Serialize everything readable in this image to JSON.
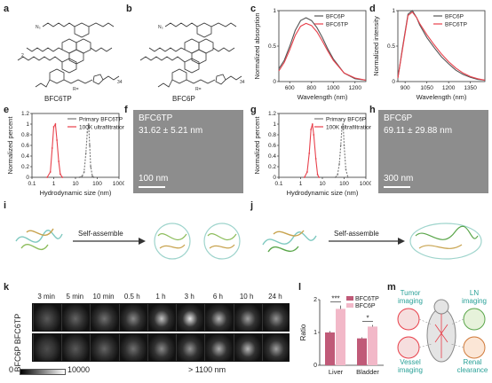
{
  "panels": {
    "a": "a",
    "b": "b",
    "c": "c",
    "d": "d",
    "e": "e",
    "f": "f",
    "g": "g",
    "h": "h",
    "i": "i",
    "j": "j",
    "k": "k",
    "l": "l",
    "m": "m"
  },
  "structures": {
    "a_caption": "BFC6TP",
    "b_caption": "BFC6P",
    "r_group": "R=",
    "repeat_34": "34",
    "repeat_2": "2",
    "n3": "N₃"
  },
  "tem": {
    "f_title": "BFC6TP",
    "f_size": "31.62 ± 5.21 nm",
    "f_scale": "100 nm",
    "h_title": "BFC6P",
    "h_size": "69.11 ± 29.88 nm",
    "h_scale": "300 nm"
  },
  "self_assemble": {
    "i_label": "Self-assemble",
    "j_label": "Self-assemble"
  },
  "imaging": {
    "times": [
      "3 min",
      "5 min",
      "10 min",
      "0.5 h",
      "1 h",
      "3 h",
      "6 h",
      "10 h",
      "24 h"
    ],
    "row1": "BFC6TP",
    "row2": "BFC6P",
    "scale_min": "0",
    "scale_max": "10000",
    "wavelength": "> 1100 nm"
  },
  "schematic": {
    "tumor": "Tumor\nimaging",
    "ln": "LN\nimaging",
    "vessel": "Vessel\nimaging",
    "renal": "Renal\nclearance"
  },
  "colors": {
    "red": "#e8404b",
    "gray": "#555555",
    "bar_dark": "#c05a78",
    "bar_light": "#f2b8c8",
    "teal": "#2aa198"
  },
  "chart_data": [
    {
      "id": "c",
      "type": "line",
      "xlabel": "Wavelength (nm)",
      "ylabel": "Normalized absorption",
      "xlim": [
        500,
        1300
      ],
      "ylim": [
        0,
        1.0
      ],
      "xticks": [
        600,
        800,
        1000,
        1200
      ],
      "yticks": [
        0,
        0.5,
        1.0
      ],
      "legend_position": "top-right",
      "series": [
        {
          "name": "BFC6P",
          "color": "#555555",
          "x": [
            500,
            550,
            600,
            650,
            700,
            750,
            800,
            850,
            900,
            950,
            1000,
            1100,
            1200,
            1300
          ],
          "y": [
            0.18,
            0.3,
            0.5,
            0.72,
            0.86,
            0.9,
            0.86,
            0.76,
            0.62,
            0.46,
            0.32,
            0.12,
            0.04,
            0.02
          ]
        },
        {
          "name": "BFC6TP",
          "color": "#e8404b",
          "x": [
            500,
            550,
            600,
            650,
            700,
            750,
            800,
            850,
            900,
            950,
            1000,
            1100,
            1200,
            1300
          ],
          "y": [
            0.15,
            0.27,
            0.45,
            0.65,
            0.78,
            0.82,
            0.79,
            0.7,
            0.57,
            0.43,
            0.3,
            0.12,
            0.05,
            0.02
          ]
        }
      ]
    },
    {
      "id": "d",
      "type": "line",
      "xlabel": "Wavelength (nm)",
      "ylabel": "Normalized intensity",
      "xlim": [
        850,
        1450
      ],
      "ylim": [
        0,
        1.0
      ],
      "xticks": [
        900,
        1050,
        1200,
        1350
      ],
      "yticks": [
        0,
        0.5,
        1.0
      ],
      "legend_position": "top-right",
      "series": [
        {
          "name": "BFC6P",
          "color": "#555555",
          "x": [
            850,
            880,
            920,
            950,
            980,
            1000,
            1050,
            1100,
            1150,
            1200,
            1250,
            1300,
            1350,
            1400,
            1450
          ],
          "y": [
            0.05,
            0.45,
            0.95,
            1.0,
            0.9,
            0.8,
            0.62,
            0.48,
            0.35,
            0.25,
            0.16,
            0.1,
            0.06,
            0.03,
            0.02
          ]
        },
        {
          "name": "BFC6TP",
          "color": "#e8404b",
          "x": [
            850,
            880,
            920,
            950,
            980,
            1000,
            1050,
            1100,
            1150,
            1200,
            1250,
            1300,
            1350,
            1400,
            1450
          ],
          "y": [
            0.05,
            0.43,
            0.93,
            0.98,
            0.9,
            0.82,
            0.66,
            0.52,
            0.39,
            0.28,
            0.19,
            0.12,
            0.07,
            0.04,
            0.02
          ]
        }
      ]
    },
    {
      "id": "e",
      "type": "line",
      "xscale": "log",
      "xlabel": "Hydrodynamic size (nm)",
      "ylabel": "Normalized percent",
      "xlim": [
        0.1,
        1000
      ],
      "ylim": [
        0,
        1.2
      ],
      "xticks": [
        0.1,
        1,
        10,
        100,
        1000
      ],
      "yticks": [
        0.0,
        0.2,
        0.4,
        0.6,
        0.8,
        1.0,
        1.2
      ],
      "legend_position": "top-right",
      "series": [
        {
          "name": "Primary BFC6TP",
          "color": "#777777",
          "dashed": true,
          "x": [
            15,
            20,
            25,
            30,
            35,
            40,
            45,
            50,
            60,
            70
          ],
          "y": [
            0,
            0.02,
            0.1,
            0.45,
            0.85,
            1.0,
            0.6,
            0.2,
            0.02,
            0
          ]
        },
        {
          "name": "100K ultrafiltration",
          "color": "#e8404b",
          "dashed": false,
          "x": [
            0.5,
            0.7,
            0.85,
            1.0,
            1.2,
            1.4,
            1.7,
            2.0,
            2.5
          ],
          "y": [
            0,
            0.1,
            0.55,
            0.95,
            1.0,
            0.7,
            0.3,
            0.06,
            0
          ]
        }
      ]
    },
    {
      "id": "g",
      "type": "line",
      "xscale": "log",
      "xlabel": "Hydrodynamic size (nm)",
      "ylabel": "Normalized percent",
      "xlim": [
        0.1,
        1000
      ],
      "ylim": [
        0,
        1.2
      ],
      "xticks": [
        0.1,
        1,
        10,
        100,
        1000
      ],
      "yticks": [
        0.0,
        0.2,
        0.4,
        0.6,
        0.8,
        1.0,
        1.2
      ],
      "legend_position": "top-right",
      "series": [
        {
          "name": "Primary BFC6P",
          "color": "#777777",
          "dashed": true,
          "x": [
            40,
            50,
            60,
            70,
            80,
            90,
            100,
            120,
            150
          ],
          "y": [
            0,
            0.05,
            0.25,
            0.6,
            0.95,
            1.0,
            0.6,
            0.15,
            0
          ]
        },
        {
          "name": "100K ultrafiltration",
          "color": "#e8404b",
          "dashed": false,
          "x": [
            1.5,
            2,
            2.5,
            3,
            3.5,
            4,
            5,
            6,
            7
          ],
          "y": [
            0,
            0.1,
            0.45,
            0.9,
            1.0,
            0.8,
            0.35,
            0.05,
            0
          ]
        }
      ]
    },
    {
      "id": "l",
      "type": "bar",
      "ylabel": "Ratio",
      "ylim": [
        0,
        2
      ],
      "yticks": [
        0,
        1,
        2
      ],
      "categories": [
        "Liver",
        "Bladder"
      ],
      "legend_position": "top-right",
      "series": [
        {
          "name": "BFC6TP",
          "color": "#c05a78",
          "values": [
            1.0,
            0.82
          ],
          "errors": [
            0.04,
            0.03
          ]
        },
        {
          "name": "BFC6P",
          "color": "#f2b8c8",
          "values": [
            1.72,
            1.18
          ],
          "errors": [
            0.1,
            0.05
          ]
        }
      ],
      "significance": [
        "***",
        "*"
      ]
    }
  ]
}
